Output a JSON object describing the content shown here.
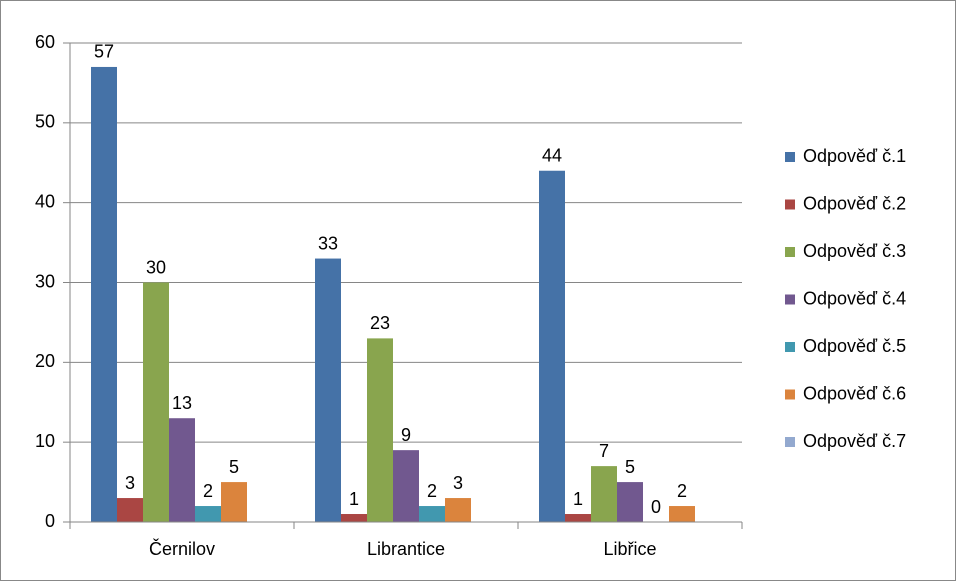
{
  "chart_data": {
    "type": "bar",
    "categories": [
      "Černilov",
      "Librantice",
      "Libřice"
    ],
    "series": [
      {
        "name": "Odpověď č.1",
        "color": "#4572a7",
        "values": [
          57,
          33,
          44
        ]
      },
      {
        "name": "Odpověď č.2",
        "color": "#aa4643",
        "values": [
          3,
          1,
          1
        ]
      },
      {
        "name": "Odpověď č.3",
        "color": "#89a54e",
        "values": [
          30,
          23,
          7
        ]
      },
      {
        "name": "Odpověď č.4",
        "color": "#71588f",
        "values": [
          13,
          9,
          5
        ]
      },
      {
        "name": "Odpověď č.5",
        "color": "#4198af",
        "values": [
          2,
          2,
          0
        ]
      },
      {
        "name": "Odpověď č.6",
        "color": "#db843d",
        "values": [
          5,
          3,
          2
        ]
      },
      {
        "name": "Odpověď č.7",
        "color": "#93a9cf",
        "values": [
          null,
          null,
          null
        ]
      }
    ],
    "ylim": [
      0,
      60
    ],
    "yticks": [
      0,
      10,
      20,
      30,
      40,
      50,
      60
    ],
    "grid": true,
    "legend": "right"
  }
}
